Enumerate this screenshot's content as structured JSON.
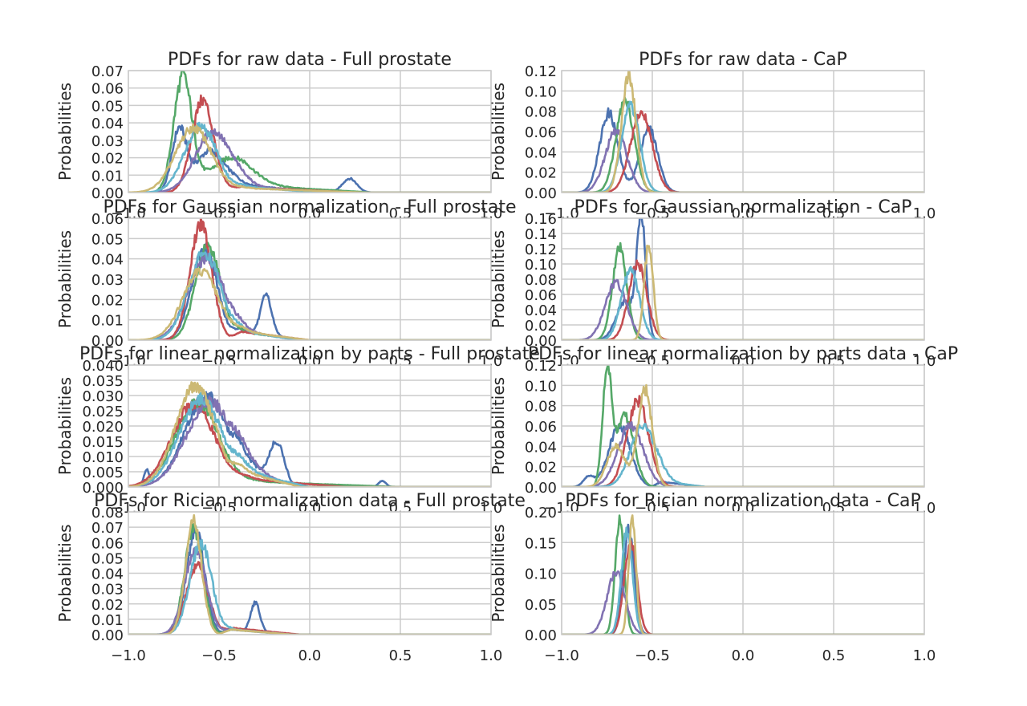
{
  "figure": {
    "title": "",
    "background": "#ffffff"
  },
  "palette": [
    "#4c72b0",
    "#55a868",
    "#c44e52",
    "#8172b2",
    "#64b5cd",
    "#ccb974"
  ],
  "chart_data": [
    {
      "type": "line",
      "title": "PDFs for raw data - Full prostate",
      "xlabel": "",
      "ylabel": "Probabilities",
      "xlim": [
        -1.0,
        1.0
      ],
      "ylim": [
        0,
        0.07
      ],
      "grid": true,
      "x_ticks": [
        "−1.0",
        "−0.5",
        "0.0",
        "0.5",
        "1.0"
      ],
      "y_ticks": [
        "0.00",
        "0.01",
        "0.02",
        "0.03",
        "0.04",
        "0.05",
        "0.06",
        "0.07"
      ],
      "series": [
        {
          "color": "#4c72b0",
          "peaks": [
            {
              "mu": -0.72,
              "sd": 0.04,
              "h": 0.035
            },
            {
              "mu": -0.55,
              "sd": 0.08,
              "h": 0.024
            },
            {
              "mu": 0.22,
              "sd": 0.04,
              "h": 0.008
            }
          ],
          "tail": {
            "start": -0.5,
            "end": 0.05,
            "h": 0.006
          }
        },
        {
          "color": "#55a868",
          "peaks": [
            {
              "mu": -0.7,
              "sd": 0.05,
              "h": 0.065
            },
            {
              "mu": -0.45,
              "sd": 0.12,
              "h": 0.018
            }
          ],
          "tail": {
            "start": -0.5,
            "end": 0.35,
            "h": 0.005
          }
        },
        {
          "color": "#c44e52",
          "peaks": [
            {
              "mu": -0.59,
              "sd": 0.06,
              "h": 0.053
            }
          ],
          "tail": {
            "start": -0.5,
            "end": 0.25,
            "h": 0.004
          }
        },
        {
          "color": "#8172b2",
          "peaks": [
            {
              "mu": -0.53,
              "sd": 0.1,
              "h": 0.035
            }
          ],
          "tail": {
            "start": -0.45,
            "end": 0.1,
            "h": 0.004
          }
        },
        {
          "color": "#64b5cd",
          "peaks": [
            {
              "mu": -0.6,
              "sd": 0.09,
              "h": 0.038
            }
          ],
          "tail": {
            "start": -0.45,
            "end": 0.05,
            "h": 0.004
          }
        },
        {
          "color": "#ccb974",
          "peaks": [
            {
              "mu": -0.64,
              "sd": 0.1,
              "h": 0.037
            }
          ],
          "tail": {
            "start": -0.5,
            "end": 0.3,
            "h": 0.003
          }
        }
      ]
    },
    {
      "type": "line",
      "title": "PDFs for raw data - CaP",
      "xlabel": "",
      "ylabel": "Probabilities",
      "xlim": [
        -1.0,
        1.0
      ],
      "ylim": [
        0,
        0.12
      ],
      "grid": true,
      "x_ticks": [
        "−1.0",
        "−0.5",
        "0.0",
        "0.5",
        "1.0"
      ],
      "y_ticks": [
        "0.00",
        "0.02",
        "0.04",
        "0.06",
        "0.08",
        "0.10",
        "0.12"
      ],
      "series": [
        {
          "color": "#4c72b0",
          "peaks": [
            {
              "mu": -0.74,
              "sd": 0.05,
              "h": 0.078
            },
            {
              "mu": -0.52,
              "sd": 0.05,
              "h": 0.063
            }
          ]
        },
        {
          "color": "#55a868",
          "peaks": [
            {
              "mu": -0.65,
              "sd": 0.05,
              "h": 0.09
            }
          ]
        },
        {
          "color": "#c44e52",
          "peaks": [
            {
              "mu": -0.56,
              "sd": 0.06,
              "h": 0.078
            }
          ]
        },
        {
          "color": "#8172b2",
          "peaks": [
            {
              "mu": -0.7,
              "sd": 0.06,
              "h": 0.06
            }
          ]
        },
        {
          "color": "#64b5cd",
          "peaks": [
            {
              "mu": -0.62,
              "sd": 0.05,
              "h": 0.085
            }
          ]
        },
        {
          "color": "#ccb974",
          "peaks": [
            {
              "mu": -0.63,
              "sd": 0.04,
              "h": 0.116
            }
          ]
        }
      ]
    },
    {
      "type": "line",
      "title": "PDFs for Gaussian normalization - Full prostate",
      "xlabel": "",
      "ylabel": "Probabilities",
      "xlim": [
        -1.0,
        1.0
      ],
      "ylim": [
        0,
        0.06
      ],
      "grid": true,
      "x_ticks": [
        "−1.0",
        "−0.5",
        "0.0",
        "0.5",
        "1.0"
      ],
      "y_ticks": [
        "0.00",
        "0.01",
        "0.02",
        "0.03",
        "0.04",
        "0.05",
        "0.06"
      ],
      "series": [
        {
          "color": "#4c72b0",
          "peaks": [
            {
              "mu": -0.58,
              "sd": 0.07,
              "h": 0.045
            },
            {
              "mu": -0.24,
              "sd": 0.03,
              "h": 0.019
            }
          ],
          "tail": {
            "start": -0.45,
            "end": -0.05,
            "h": 0.006
          }
        },
        {
          "color": "#55a868",
          "peaks": [
            {
              "mu": -0.56,
              "sd": 0.07,
              "h": 0.046
            }
          ],
          "tail": {
            "start": -0.45,
            "end": -0.05,
            "h": 0.005
          }
        },
        {
          "color": "#c44e52",
          "peaks": [
            {
              "mu": -0.6,
              "sd": 0.06,
              "h": 0.057
            }
          ],
          "tail": {
            "start": -0.45,
            "end": 0.0,
            "h": 0.005
          }
        },
        {
          "color": "#8172b2",
          "peaks": [
            {
              "mu": -0.57,
              "sd": 0.1,
              "h": 0.04
            }
          ],
          "tail": {
            "start": -0.45,
            "end": -0.05,
            "h": 0.005
          }
        },
        {
          "color": "#64b5cd",
          "peaks": [
            {
              "mu": -0.58,
              "sd": 0.09,
              "h": 0.043
            }
          ],
          "tail": {
            "start": -0.45,
            "end": -0.05,
            "h": 0.005
          }
        },
        {
          "color": "#ccb974",
          "peaks": [
            {
              "mu": -0.6,
              "sd": 0.1,
              "h": 0.034
            }
          ],
          "tail": {
            "start": -0.45,
            "end": 0.0,
            "h": 0.005
          }
        }
      ]
    },
    {
      "type": "line",
      "title": "PDFs for Gaussian normalization - CaP",
      "xlabel": "",
      "ylabel": "Probabilities",
      "xlim": [
        -1.0,
        1.0
      ],
      "ylim": [
        0,
        0.16
      ],
      "grid": true,
      "x_ticks": [
        "−1.0",
        "−0.5",
        "0.0",
        "0.5",
        "1.0"
      ],
      "y_ticks": [
        "0.00",
        "0.02",
        "0.04",
        "0.06",
        "0.08",
        "0.10",
        "0.12",
        "0.14",
        "0.16"
      ],
      "series": [
        {
          "color": "#4c72b0",
          "peaks": [
            {
              "mu": -0.56,
              "sd": 0.025,
              "h": 0.16
            },
            {
              "mu": -0.65,
              "sd": 0.05,
              "h": 0.05
            }
          ]
        },
        {
          "color": "#55a868",
          "peaks": [
            {
              "mu": -0.68,
              "sd": 0.04,
              "h": 0.12
            }
          ]
        },
        {
          "color": "#c44e52",
          "peaks": [
            {
              "mu": -0.58,
              "sd": 0.05,
              "h": 0.1
            }
          ]
        },
        {
          "color": "#8172b2",
          "peaks": [
            {
              "mu": -0.7,
              "sd": 0.06,
              "h": 0.075
            }
          ]
        },
        {
          "color": "#64b5cd",
          "peaks": [
            {
              "mu": -0.62,
              "sd": 0.05,
              "h": 0.09
            }
          ]
        },
        {
          "color": "#ccb974",
          "peaks": [
            {
              "mu": -0.52,
              "sd": 0.025,
              "h": 0.125
            }
          ]
        }
      ]
    },
    {
      "type": "line",
      "title": "PDFs for linear normalization by parts - Full prostate",
      "xlabel": "",
      "ylabel": "Probabilities",
      "xlim": [
        -1.0,
        1.0
      ],
      "ylim": [
        0,
        0.04
      ],
      "grid": true,
      "x_ticks": [
        "−1.0",
        "−0.5",
        "0.0",
        "0.5",
        "1.0"
      ],
      "y_ticks": [
        "0.000",
        "0.005",
        "0.010",
        "0.015",
        "0.020",
        "0.025",
        "0.030",
        "0.035",
        "0.040"
      ],
      "series": [
        {
          "color": "#4c72b0",
          "peaks": [
            {
              "mu": -0.57,
              "sd": 0.12,
              "h": 0.03
            },
            {
              "mu": -0.18,
              "sd": 0.04,
              "h": 0.013
            },
            {
              "mu": 0.4,
              "sd": 0.02,
              "h": 0.002
            },
            {
              "mu": -0.9,
              "sd": 0.015,
              "h": 0.005
            }
          ],
          "tail": {
            "start": -0.45,
            "end": -0.1,
            "h": 0.008
          }
        },
        {
          "color": "#55a868",
          "peaks": [
            {
              "mu": -0.62,
              "sd": 0.12,
              "h": 0.028
            }
          ],
          "tail": {
            "start": -0.45,
            "end": 0.5,
            "h": 0.002
          }
        },
        {
          "color": "#c44e52",
          "peaks": [
            {
              "mu": -0.64,
              "sd": 0.12,
              "h": 0.027
            }
          ],
          "tail": {
            "start": -0.45,
            "end": 0.2,
            "h": 0.003
          }
        },
        {
          "color": "#8172b2",
          "peaks": [
            {
              "mu": -0.55,
              "sd": 0.13,
              "h": 0.028
            }
          ],
          "tail": {
            "start": -0.45,
            "end": -0.05,
            "h": 0.006
          }
        },
        {
          "color": "#64b5cd",
          "peaks": [
            {
              "mu": -0.6,
              "sd": 0.12,
              "h": 0.029
            }
          ],
          "tail": {
            "start": -0.45,
            "end": 0.0,
            "h": 0.006
          }
        },
        {
          "color": "#ccb974",
          "peaks": [
            {
              "mu": -0.63,
              "sd": 0.11,
              "h": 0.033
            }
          ],
          "tail": {
            "start": -0.45,
            "end": -0.05,
            "h": 0.006
          }
        }
      ]
    },
    {
      "type": "line",
      "title": "PDFs for linear normalization by parts data - CaP",
      "xlabel": "",
      "ylabel": "Probabilities",
      "xlim": [
        -1.0,
        1.0
      ],
      "ylim": [
        0,
        0.12
      ],
      "grid": true,
      "x_ticks": [
        "−1.0",
        "−0.5",
        "0.0",
        "0.5",
        "1.0"
      ],
      "y_ticks": [
        "0.00",
        "0.02",
        "0.04",
        "0.06",
        "0.08",
        "0.10",
        "0.12"
      ],
      "series": [
        {
          "color": "#4c72b0",
          "peaks": [
            {
              "mu": -0.68,
              "sd": 0.06,
              "h": 0.06
            },
            {
              "mu": -0.85,
              "sd": 0.03,
              "h": 0.01
            }
          ],
          "tail": {
            "start": -0.5,
            "end": -0.2,
            "h": 0.006
          }
        },
        {
          "color": "#55a868",
          "peaks": [
            {
              "mu": -0.75,
              "sd": 0.025,
              "h": 0.11
            },
            {
              "mu": -0.65,
              "sd": 0.05,
              "h": 0.07
            }
          ]
        },
        {
          "color": "#c44e52",
          "peaks": [
            {
              "mu": -0.58,
              "sd": 0.06,
              "h": 0.085
            }
          ]
        },
        {
          "color": "#8172b2",
          "peaks": [
            {
              "mu": -0.62,
              "sd": 0.07,
              "h": 0.06
            }
          ]
        },
        {
          "color": "#64b5cd",
          "peaks": [
            {
              "mu": -0.55,
              "sd": 0.07,
              "h": 0.06
            }
          ],
          "tail": {
            "start": -0.5,
            "end": -0.2,
            "h": 0.006
          }
        },
        {
          "color": "#ccb974",
          "peaks": [
            {
              "mu": -0.54,
              "sd": 0.04,
              "h": 0.095
            },
            {
              "mu": -0.7,
              "sd": 0.05,
              "h": 0.04
            }
          ]
        }
      ]
    },
    {
      "type": "line",
      "title": "PDFs for Rician normalization data - Full prostate",
      "xlabel": "",
      "ylabel": "Probabilities",
      "xlim": [
        -1.0,
        1.0
      ],
      "ylim": [
        0,
        0.08
      ],
      "grid": true,
      "x_ticks": [
        "−1.0",
        "−0.5",
        "0.0",
        "0.5",
        "1.0"
      ],
      "y_ticks": [
        "0.00",
        "0.01",
        "0.02",
        "0.03",
        "0.04",
        "0.05",
        "0.06",
        "0.07",
        "0.08"
      ],
      "series": [
        {
          "color": "#4c72b0",
          "peaks": [
            {
              "mu": -0.63,
              "sd": 0.05,
              "h": 0.068
            },
            {
              "mu": -0.3,
              "sd": 0.025,
              "h": 0.019
            }
          ],
          "tail": {
            "start": -0.5,
            "end": -0.1,
            "h": 0.004
          }
        },
        {
          "color": "#55a868",
          "peaks": [
            {
              "mu": -0.64,
              "sd": 0.05,
              "h": 0.07
            }
          ],
          "tail": {
            "start": -0.5,
            "end": -0.1,
            "h": 0.004
          }
        },
        {
          "color": "#c44e52",
          "peaks": [
            {
              "mu": -0.62,
              "sd": 0.06,
              "h": 0.045
            }
          ],
          "tail": {
            "start": -0.5,
            "end": -0.05,
            "h": 0.005
          }
        },
        {
          "color": "#8172b2",
          "peaks": [
            {
              "mu": -0.63,
              "sd": 0.06,
              "h": 0.055
            }
          ],
          "tail": {
            "start": -0.5,
            "end": -0.1,
            "h": 0.004
          }
        },
        {
          "color": "#64b5cd",
          "peaks": [
            {
              "mu": -0.6,
              "sd": 0.06,
              "h": 0.06
            }
          ],
          "tail": {
            "start": -0.5,
            "end": -0.1,
            "h": 0.004
          }
        },
        {
          "color": "#ccb974",
          "peaks": [
            {
              "mu": -0.64,
              "sd": 0.045,
              "h": 0.073
            }
          ],
          "tail": {
            "start": -0.5,
            "end": -0.1,
            "h": 0.004
          }
        }
      ]
    },
    {
      "type": "line",
      "title": "PDFs for Rician normalization data - CaP",
      "xlabel": "",
      "ylabel": "Probabilities",
      "xlim": [
        -1.0,
        1.0
      ],
      "ylim": [
        0,
        0.2
      ],
      "grid": true,
      "x_ticks": [
        "−1.0",
        "−0.5",
        "0.0",
        "0.5",
        "1.0"
      ],
      "y_ticks": [
        "0.00",
        "0.05",
        "0.10",
        "0.15",
        "0.20"
      ],
      "series": [
        {
          "color": "#4c72b0",
          "peaks": [
            {
              "mu": -0.63,
              "sd": 0.03,
              "h": 0.17
            }
          ]
        },
        {
          "color": "#55a868",
          "peaks": [
            {
              "mu": -0.68,
              "sd": 0.025,
              "h": 0.19
            }
          ]
        },
        {
          "color": "#c44e52",
          "peaks": [
            {
              "mu": -0.62,
              "sd": 0.035,
              "h": 0.15
            }
          ]
        },
        {
          "color": "#8172b2",
          "peaks": [
            {
              "mu": -0.7,
              "sd": 0.05,
              "h": 0.1
            }
          ]
        },
        {
          "color": "#64b5cd",
          "peaks": [
            {
              "mu": -0.64,
              "sd": 0.03,
              "h": 0.17
            }
          ]
        },
        {
          "color": "#ccb974",
          "peaks": [
            {
              "mu": -0.61,
              "sd": 0.02,
              "h": 0.19
            }
          ]
        }
      ]
    }
  ]
}
